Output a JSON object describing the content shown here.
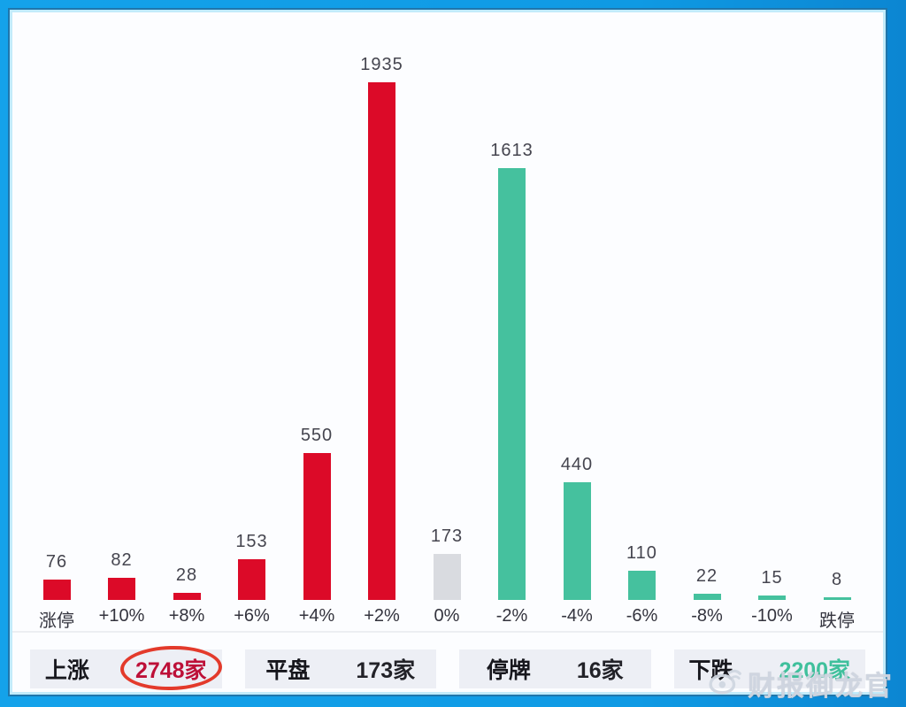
{
  "frame": {
    "border_color": "#0f9ae4",
    "inner_line_color": "#c2ebfa",
    "panel_bg": "#fcfdff"
  },
  "chart_data": {
    "type": "bar",
    "title": "",
    "xlabel": "",
    "ylabel": "",
    "categories": [
      "涨停",
      "+10%",
      "+8%",
      "+6%",
      "+4%",
      "+2%",
      "0%",
      "-2%",
      "-4%",
      "-6%",
      "-8%",
      "-10%",
      "跌停"
    ],
    "values": [
      76,
      82,
      28,
      153,
      550,
      1935,
      173,
      1613,
      440,
      110,
      22,
      15,
      8
    ],
    "color_keys": [
      "up",
      "up",
      "up",
      "up",
      "up",
      "up",
      "flat",
      "down",
      "down",
      "down",
      "down",
      "down",
      "down"
    ],
    "bar_colors": {
      "up": "#dc0a28",
      "flat": "#d9dbe0",
      "down": "#45c19e"
    },
    "ylim": [
      0,
      1935
    ],
    "grid": false,
    "legend": "none",
    "value_labels_shown": true
  },
  "summary": {
    "items": [
      {
        "label": "上涨",
        "value": "2748家",
        "value_color": "#bd1038",
        "circled": true
      },
      {
        "label": "平盘",
        "value": "173家",
        "value_color": "#222228",
        "circled": false
      },
      {
        "label": "停牌",
        "value": "16家",
        "value_color": "#222228",
        "circled": false
      },
      {
        "label": "下跌",
        "value": "2200家",
        "value_color": "#3fc09c",
        "circled": false
      }
    ],
    "box_bg": "#edeff5",
    "circle_color": "#e33a2b"
  },
  "watermark": {
    "icon": "weibo-eye-icon",
    "text": "财报御龙官",
    "color": "#d0d6e0"
  }
}
